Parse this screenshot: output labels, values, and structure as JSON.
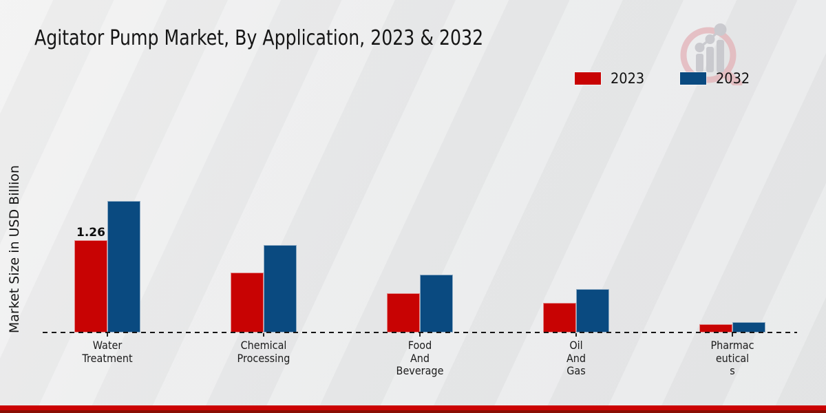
{
  "title": "Agitator Pump Market, By Application, 2023 & 2032",
  "ylabel": "Market Size in USD Billion",
  "legend": {
    "items": [
      {
        "label": "2023",
        "color": "#c80303"
      },
      {
        "label": "2032",
        "color": "#0a4a80"
      }
    ]
  },
  "colors": {
    "series_2023": "#c80303",
    "series_2032": "#0a4a80",
    "footer_bar_top": "#cb0303",
    "footer_bar_bottom": "#8a0e03",
    "background": "#eaeaeb",
    "text": "#151515"
  },
  "chart_data": {
    "type": "bar",
    "title": "Agitator Pump Market, By Application, 2023 & 2032",
    "xlabel": "",
    "ylabel": "Market Size in USD Billion",
    "categories": [
      "Water Treatment",
      "Chemical Processing",
      "Food And Beverage",
      "Oil And Gas",
      "Pharmaceuticals"
    ],
    "tick_label_lines": [
      [
        "Water",
        "Treatment"
      ],
      [
        "Chemical",
        "Processing"
      ],
      [
        "Food",
        "And",
        "Beverage"
      ],
      [
        "Oil",
        "And",
        "Gas"
      ],
      [
        "Pharmac",
        "eutical",
        "s"
      ]
    ],
    "series": [
      {
        "name": "2023",
        "color": "#c80303",
        "values": [
          1.26,
          0.82,
          0.54,
          0.41,
          0.11
        ]
      },
      {
        "name": "2032",
        "color": "#0a4a80",
        "values": [
          1.8,
          1.2,
          0.79,
          0.59,
          0.14
        ]
      }
    ],
    "bar_value_labels": [
      {
        "series": "2023",
        "category": "Water Treatment",
        "text": "1.26"
      }
    ],
    "ylim": [
      0,
      2.0
    ],
    "grid": false,
    "baseline_style": "dashed",
    "legend_position": "top-right"
  }
}
